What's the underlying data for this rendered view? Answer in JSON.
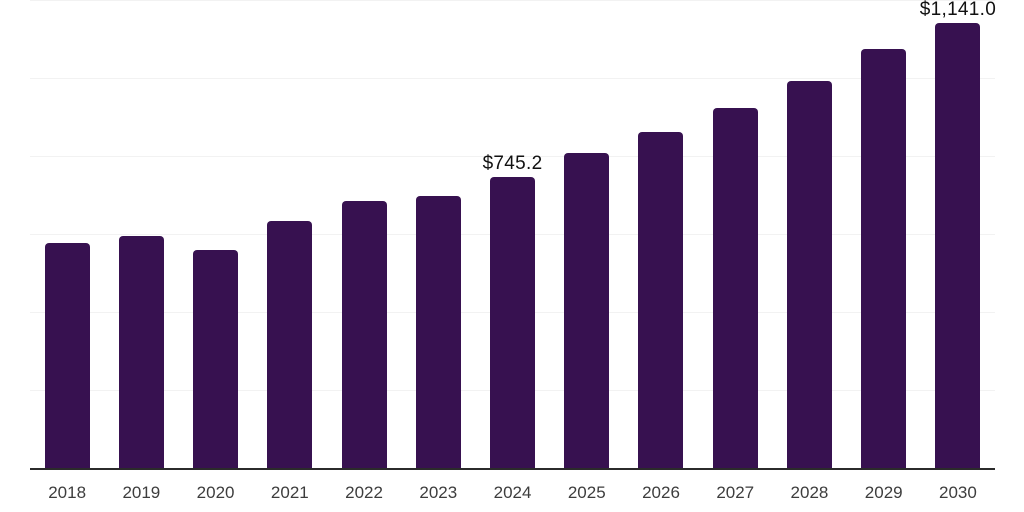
{
  "chart_data": {
    "type": "bar",
    "title": "",
    "xlabel": "",
    "ylabel": "",
    "categories": [
      "2018",
      "2019",
      "2020",
      "2021",
      "2022",
      "2023",
      "2024",
      "2025",
      "2026",
      "2027",
      "2028",
      "2029",
      "2030"
    ],
    "values": [
      576,
      594,
      558,
      633,
      684,
      697,
      745.2,
      807,
      861,
      923,
      993,
      1075,
      1141
    ],
    "data_labels": [
      "",
      "",
      "",
      "",
      "",
      "",
      "$745.2",
      "",
      "",
      "",
      "",
      "",
      "$1,141.0"
    ],
    "ylim": [
      0,
      1200
    ],
    "gridline_values": [
      200,
      400,
      600,
      800,
      1000,
      1200
    ],
    "grid": "horizontal",
    "legend": "none",
    "colors": {
      "bar": "#371150",
      "gridline": "#f2f2f2",
      "axis_line": "#2b2b2b",
      "tick_label": "#3d3d3d",
      "data_label": "#111111",
      "background": "#ffffff"
    }
  }
}
